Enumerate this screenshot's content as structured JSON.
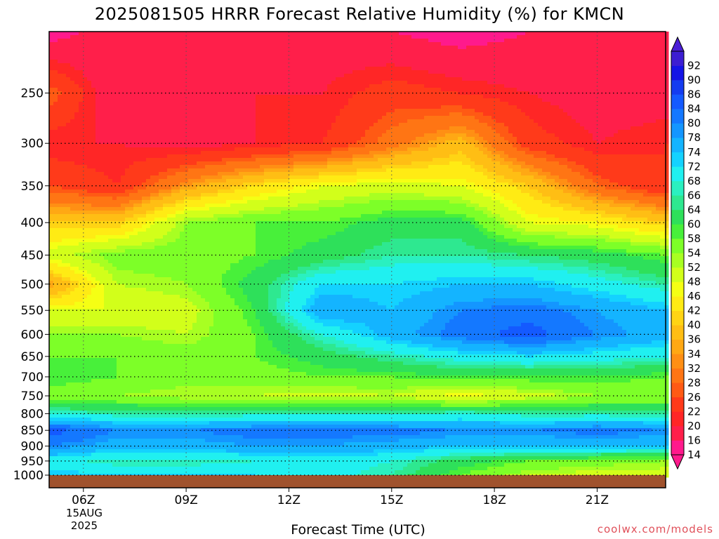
{
  "title": "2025081505 HRRR Forecast Relative Humidity (%) for KMCN",
  "credit": "coolwx.com/models",
  "chart_data": {
    "type": "heatmap",
    "title": "2025081505 HRRR Forecast Relative Humidity (%) for KMCN",
    "xlabel": "Forecast Time (UTC)",
    "ylabel": "",
    "x_tick_labels": [
      "06Z",
      "09Z",
      "12Z",
      "15Z",
      "18Z",
      "21Z"
    ],
    "x_tick_hours": [
      6,
      9,
      12,
      15,
      18,
      21
    ],
    "x_range_hours": [
      5,
      23
    ],
    "date_lines": [
      "15AUG",
      "2025"
    ],
    "y_ticks": [
      250,
      300,
      350,
      400,
      450,
      500,
      550,
      600,
      650,
      700,
      750,
      800,
      850,
      900,
      950,
      1000
    ],
    "y_range": [
      1000,
      200
    ],
    "y_scale": "log",
    "grid": true,
    "colorbar": {
      "levels": [
        14,
        16,
        20,
        22,
        26,
        28,
        32,
        34,
        36,
        40,
        42,
        46,
        48,
        52,
        54,
        58,
        60,
        64,
        66,
        68,
        72,
        74,
        78,
        80,
        84,
        86,
        90,
        92
      ],
      "colors": [
        "#ff1a8c",
        "#ff1f4a",
        "#ff2626",
        "#ff3a1a",
        "#ff5a14",
        "#ff7514",
        "#ff8f14",
        "#ffa814",
        "#ffbe14",
        "#ffd414",
        "#ffeb14",
        "#f5ff14",
        "#d2ff1a",
        "#a8ff22",
        "#7dff28",
        "#48f03a",
        "#2ee05a",
        "#2ee890",
        "#2af0c0",
        "#20f0f0",
        "#14d2ff",
        "#14b4ff",
        "#1496ff",
        "#1478ff",
        "#145aff",
        "#143cf0",
        "#1414e6",
        "#3c1ed2"
      ],
      "extend_low_color": "#ff1a8c",
      "extend_high_color": "#4a1ed6"
    },
    "rh_profiles": {
      "hours": [
        5,
        7,
        9,
        11,
        13,
        15,
        17,
        19,
        21,
        23
      ],
      "pressures": [
        200,
        250,
        300,
        350,
        400,
        450,
        500,
        550,
        600,
        650,
        700,
        750,
        800,
        850,
        900,
        950,
        1000
      ],
      "values": [
        [
          14,
          18,
          20,
          20,
          18,
          16,
          14,
          16,
          16,
          16
        ],
        [
          28,
          16,
          18,
          20,
          20,
          24,
          22,
          20,
          18,
          18
        ],
        [
          20,
          20,
          18,
          20,
          22,
          30,
          38,
          24,
          20,
          22
        ],
        [
          26,
          22,
          34,
          42,
          48,
          50,
          48,
          40,
          28,
          22
        ],
        [
          40,
          40,
          54,
          58,
          58,
          62,
          62,
          48,
          46,
          40
        ],
        [
          50,
          56,
          56,
          58,
          62,
          66,
          66,
          64,
          62,
          58
        ],
        [
          34,
          52,
          54,
          62,
          72,
          72,
          74,
          74,
          70,
          66
        ],
        [
          48,
          48,
          50,
          60,
          78,
          74,
          80,
          82,
          78,
          74
        ],
        [
          54,
          54,
          52,
          58,
          68,
          76,
          82,
          86,
          80,
          76
        ],
        [
          58,
          58,
          56,
          58,
          62,
          66,
          70,
          72,
          70,
          68
        ],
        [
          60,
          58,
          56,
          56,
          58,
          58,
          60,
          60,
          60,
          58
        ],
        [
          56,
          54,
          52,
          52,
          50,
          52,
          46,
          50,
          54,
          54
        ],
        [
          68,
          66,
          66,
          66,
          66,
          66,
          68,
          66,
          66,
          66
        ],
        [
          86,
          80,
          80,
          82,
          82,
          82,
          80,
          80,
          82,
          80
        ],
        [
          80,
          76,
          76,
          78,
          78,
          76,
          74,
          74,
          74,
          74
        ],
        [
          70,
          66,
          66,
          68,
          70,
          68,
          62,
          58,
          56,
          54
        ],
        [
          74,
          72,
          72,
          72,
          70,
          66,
          58,
          52,
          50,
          50
        ]
      ]
    }
  }
}
